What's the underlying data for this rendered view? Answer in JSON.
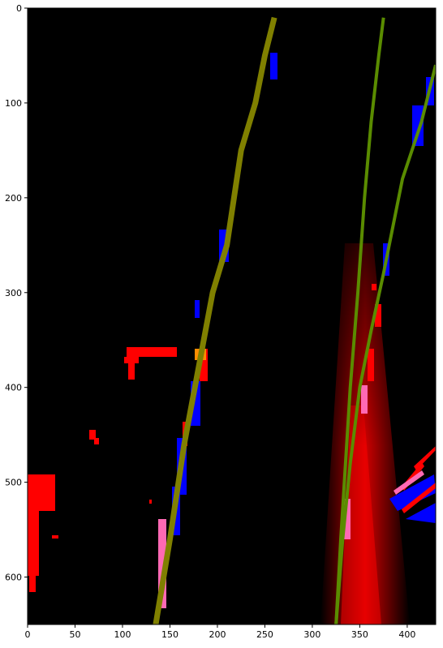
{
  "colors": {
    "background": "#000000",
    "figure_background": "#ffffff",
    "left_line": "#808000",
    "right_line": "#5a8c00",
    "right_line_glow": "#ff0000",
    "left_hits": "#ff0000",
    "right_hits": "#0000ff",
    "overlap_left": "#ff8c00",
    "overlap_right": "#ff69b4"
  },
  "chart_data": {
    "type": "image",
    "x_axis": {
      "ticks": [
        0,
        50,
        100,
        150,
        200,
        250,
        300,
        350,
        400
      ],
      "limits": [
        0,
        430
      ]
    },
    "y_axis": {
      "ticks": [
        0,
        100,
        200,
        300,
        400,
        500,
        600
      ],
      "limits": [
        0,
        650
      ],
      "inverted": true
    },
    "left_lane_fit": [
      [
        260,
        10
      ],
      [
        250,
        50
      ],
      [
        240,
        100
      ],
      [
        225,
        150
      ],
      [
        210,
        250
      ],
      [
        195,
        300
      ],
      [
        180,
        380
      ],
      [
        165,
        460
      ],
      [
        150,
        560
      ],
      [
        135,
        650
      ]
    ],
    "right_lane_fit": [
      [
        375,
        10
      ],
      [
        370,
        50
      ],
      [
        362,
        120
      ],
      [
        355,
        200
      ],
      [
        348,
        300
      ],
      [
        340,
        400
      ],
      [
        335,
        480
      ],
      [
        330,
        560
      ],
      [
        325,
        650
      ]
    ],
    "right_lane_outer_fit": [
      [
        430,
        60
      ],
      [
        415,
        120
      ],
      [
        395,
        180
      ],
      [
        375,
        280
      ],
      [
        362,
        340
      ],
      [
        350,
        400
      ],
      [
        340,
        480
      ],
      [
        332,
        560
      ],
      [
        325,
        650
      ]
    ]
  }
}
